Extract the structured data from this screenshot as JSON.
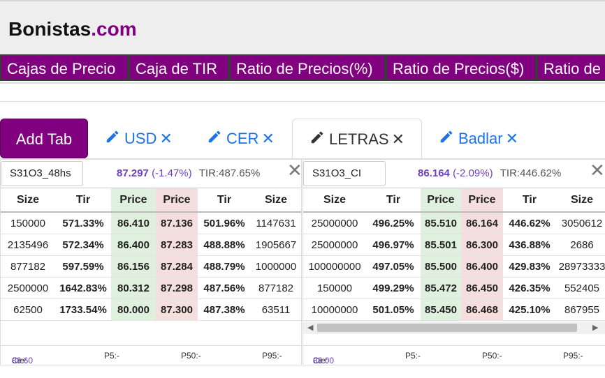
{
  "brand": {
    "name": "Bonistas",
    "suffix": ".com"
  },
  "nav": [
    {
      "label": "Cajas de Precio"
    },
    {
      "label": "Caja de TIR"
    },
    {
      "label": "Ratio de Precios(%)"
    },
    {
      "label": "Ratio de Precios($)"
    },
    {
      "label": "Ratio de"
    }
  ],
  "add_tab_label": "Add Tab",
  "tabs": [
    {
      "label": "USD",
      "close": "✕",
      "active": false
    },
    {
      "label": "CER",
      "close": "✕",
      "active": false
    },
    {
      "label": "LETRAS",
      "close": "✕",
      "active": true
    },
    {
      "label": "Badlar",
      "close": "✕",
      "active": false
    }
  ],
  "panels": [
    {
      "ticker": "S31O3_48hs",
      "last": "87.297",
      "change": "(-1.47%)",
      "tir": "TIR:487.65%",
      "close": "✕",
      "headers": [
        "Size",
        "Tir",
        "Price",
        "Price",
        "Tir",
        "Size"
      ],
      "rows": [
        [
          "150000",
          "571.33%",
          "86.410",
          "87.136",
          "501.96%",
          "1147631"
        ],
        [
          "2135496",
          "572.34%",
          "86.400",
          "87.283",
          "488.88%",
          "1905667"
        ],
        [
          "877182",
          "597.59%",
          "86.156",
          "87.284",
          "488.79%",
          "1000000"
        ],
        [
          "2500000",
          "1642.83%",
          "80.312",
          "87.298",
          "487.56%",
          "877182"
        ],
        [
          "62500",
          "1733.54%",
          "80.000",
          "87.300",
          "487.38%",
          "63511"
        ]
      ],
      "footer": {
        "cie_label": "Cie:",
        "cie_value": "88.60",
        "p5": "P5:-",
        "p50": "P50:-",
        "p95": "P95:-"
      }
    },
    {
      "ticker": "S31O3_CI",
      "last": "86.164",
      "change": "(-2.09%)",
      "tir": "TIR:446.62%",
      "close": "✕",
      "headers": [
        "Size",
        "Tir",
        "Price",
        "Price",
        "Tir",
        "Size"
      ],
      "rows": [
        [
          "25000000",
          "496.25%",
          "85.510",
          "86.164",
          "446.62%",
          "3050612"
        ],
        [
          "25000000",
          "496.97%",
          "85.501",
          "86.300",
          "436.88%",
          "2686"
        ],
        [
          "100000000",
          "497.05%",
          "85.500",
          "86.400",
          "429.83%",
          "28973333"
        ],
        [
          "150000",
          "499.29%",
          "85.472",
          "86.450",
          "426.35%",
          "552405"
        ],
        [
          "10000000",
          "501.05%",
          "85.450",
          "86.468",
          "425.10%",
          "867955"
        ]
      ],
      "footer": {
        "cie_label": "Cie:",
        "cie_value": "88.00",
        "p5": "P5:-",
        "p50": "P50:-",
        "p95": "P95:-"
      }
    }
  ],
  "colors": {
    "brand": "#800080",
    "tab_link": "#1a73e8",
    "bid_bg": "#dff0df",
    "ask_bg": "#f5dede"
  }
}
